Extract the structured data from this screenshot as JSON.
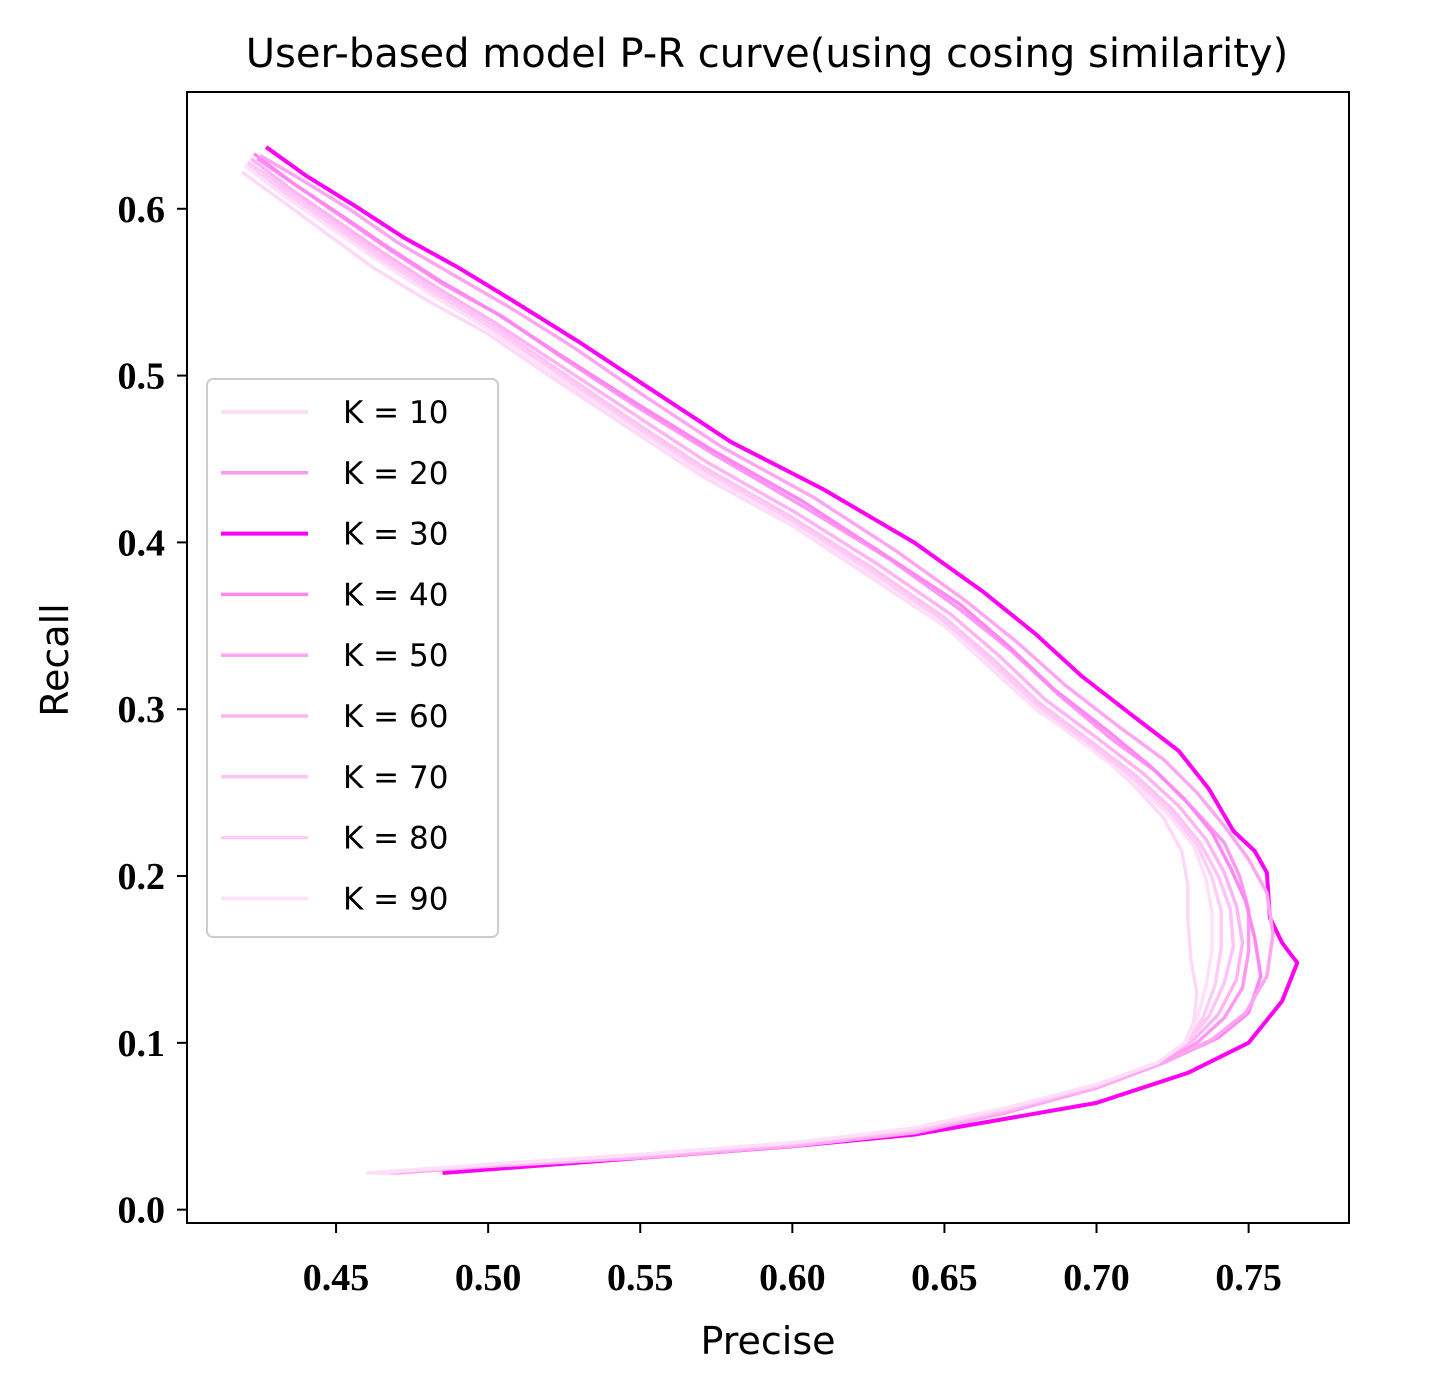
{
  "chart_data": {
    "type": "line",
    "title": "User-based model P-R curve(using cosing similarity)",
    "xlabel": "Precise",
    "ylabel": "Recall",
    "xlim": [
      0.401,
      0.783
    ],
    "ylim": [
      -0.008,
      0.67
    ],
    "xticks": [
      0.45,
      0.5,
      0.55,
      0.6,
      0.65,
      0.7,
      0.75
    ],
    "xtick_labels": [
      "0.45",
      "0.50",
      "0.55",
      "0.60",
      "0.65",
      "0.70",
      "0.75"
    ],
    "yticks": [
      0.0,
      0.1,
      0.2,
      0.3,
      0.4,
      0.5,
      0.6
    ],
    "ytick_labels": [
      "0.0",
      "0.1",
      "0.2",
      "0.3",
      "0.4",
      "0.5",
      "0.6"
    ],
    "legend_position": "center-left",
    "grid": false,
    "series": [
      {
        "name": "K = 10",
        "color": "#ffd9f7",
        "x": [
          0.419,
          0.432,
          0.447,
          0.462,
          0.48,
          0.5,
          0.52,
          0.545,
          0.57,
          0.6,
          0.625,
          0.65,
          0.665,
          0.68,
          0.7,
          0.712,
          0.722,
          0.728,
          0.73,
          0.73,
          0.731,
          0.733,
          0.732,
          0.729,
          0.72,
          0.7,
          0.67,
          0.64,
          0.6,
          0.55,
          0.5,
          0.46
        ],
        "y": [
          0.622,
          0.605,
          0.585,
          0.565,
          0.545,
          0.525,
          0.5,
          0.47,
          0.44,
          0.41,
          0.38,
          0.35,
          0.325,
          0.3,
          0.275,
          0.255,
          0.235,
          0.215,
          0.195,
          0.175,
          0.15,
          0.13,
          0.113,
          0.1,
          0.088,
          0.075,
          0.06,
          0.048,
          0.04,
          0.033,
          0.027,
          0.022
        ]
      },
      {
        "name": "K = 20",
        "color": "#ff99f2",
        "x": [
          0.424,
          0.437,
          0.452,
          0.468,
          0.485,
          0.505,
          0.525,
          0.55,
          0.575,
          0.605,
          0.632,
          0.655,
          0.672,
          0.688,
          0.705,
          0.72,
          0.732,
          0.742,
          0.747,
          0.75,
          0.75,
          0.748,
          0.742,
          0.733,
          0.72,
          0.7,
          0.67,
          0.64,
          0.6,
          0.55,
          0.5,
          0.47
        ],
        "y": [
          0.63,
          0.614,
          0.595,
          0.575,
          0.555,
          0.535,
          0.51,
          0.48,
          0.452,
          0.42,
          0.39,
          0.36,
          0.335,
          0.308,
          0.282,
          0.262,
          0.24,
          0.22,
          0.2,
          0.18,
          0.155,
          0.133,
          0.115,
          0.1,
          0.087,
          0.073,
          0.058,
          0.046,
          0.038,
          0.031,
          0.026,
          0.022
        ]
      },
      {
        "name": "K = 30",
        "color": "#ff00f5",
        "x": [
          0.427,
          0.44,
          0.456,
          0.472,
          0.49,
          0.508,
          0.53,
          0.555,
          0.58,
          0.61,
          0.64,
          0.663,
          0.68,
          0.695,
          0.712,
          0.727,
          0.737,
          0.745,
          0.752,
          0.756,
          0.757,
          0.761,
          0.766,
          0.761,
          0.75,
          0.73,
          0.7,
          0.675,
          0.64,
          0.6,
          0.55,
          0.485
        ],
        "y": [
          0.637,
          0.62,
          0.602,
          0.583,
          0.565,
          0.545,
          0.52,
          0.49,
          0.46,
          0.432,
          0.4,
          0.37,
          0.345,
          0.32,
          0.296,
          0.275,
          0.252,
          0.227,
          0.215,
          0.202,
          0.175,
          0.16,
          0.148,
          0.125,
          0.1,
          0.082,
          0.064,
          0.056,
          0.045,
          0.038,
          0.031,
          0.022
        ]
      },
      {
        "name": "K = 40",
        "color": "#ff88f2",
        "x": [
          0.423,
          0.436,
          0.451,
          0.467,
          0.484,
          0.503,
          0.524,
          0.549,
          0.574,
          0.603,
          0.63,
          0.655,
          0.671,
          0.686,
          0.703,
          0.717,
          0.729,
          0.738,
          0.744,
          0.749,
          0.752,
          0.754,
          0.75,
          0.74,
          0.722,
          0.7,
          0.67,
          0.64,
          0.6,
          0.55,
          0.5,
          0.468
        ],
        "y": [
          0.633,
          0.615,
          0.597,
          0.577,
          0.557,
          0.537,
          0.512,
          0.483,
          0.455,
          0.425,
          0.393,
          0.363,
          0.338,
          0.312,
          0.288,
          0.267,
          0.246,
          0.226,
          0.205,
          0.185,
          0.163,
          0.14,
          0.118,
          0.103,
          0.088,
          0.073,
          0.059,
          0.047,
          0.039,
          0.032,
          0.026,
          0.022
        ]
      },
      {
        "name": "K = 50",
        "color": "#ffa6f3",
        "x": [
          0.425,
          0.439,
          0.455,
          0.47,
          0.488,
          0.507,
          0.528,
          0.552,
          0.577,
          0.607,
          0.634,
          0.657,
          0.674,
          0.69,
          0.707,
          0.722,
          0.733,
          0.742,
          0.75,
          0.756,
          0.758,
          0.756,
          0.749,
          0.738,
          0.722,
          0.7,
          0.67,
          0.64,
          0.6,
          0.55,
          0.5,
          0.468
        ],
        "y": [
          0.632,
          0.617,
          0.599,
          0.58,
          0.561,
          0.541,
          0.517,
          0.487,
          0.457,
          0.427,
          0.395,
          0.365,
          0.34,
          0.314,
          0.29,
          0.27,
          0.25,
          0.23,
          0.21,
          0.19,
          0.165,
          0.14,
          0.118,
          0.102,
          0.088,
          0.073,
          0.058,
          0.046,
          0.038,
          0.031,
          0.026,
          0.022
        ]
      },
      {
        "name": "K = 60",
        "color": "#ffb5f4",
        "x": [
          0.422,
          0.435,
          0.45,
          0.466,
          0.483,
          0.502,
          0.522,
          0.547,
          0.572,
          0.601,
          0.628,
          0.652,
          0.668,
          0.683,
          0.7,
          0.715,
          0.727,
          0.736,
          0.742,
          0.746,
          0.748,
          0.746,
          0.74,
          0.732,
          0.72,
          0.7,
          0.67,
          0.64,
          0.6,
          0.55,
          0.5,
          0.465
        ],
        "y": [
          0.63,
          0.612,
          0.593,
          0.573,
          0.553,
          0.532,
          0.508,
          0.478,
          0.448,
          0.418,
          0.387,
          0.357,
          0.332,
          0.306,
          0.283,
          0.262,
          0.242,
          0.222,
          0.202,
          0.182,
          0.16,
          0.138,
          0.117,
          0.102,
          0.088,
          0.074,
          0.059,
          0.047,
          0.039,
          0.032,
          0.026,
          0.022
        ]
      },
      {
        "name": "K = 70",
        "color": "#ffc4f5",
        "x": [
          0.421,
          0.434,
          0.449,
          0.465,
          0.482,
          0.501,
          0.521,
          0.545,
          0.57,
          0.599,
          0.626,
          0.65,
          0.666,
          0.681,
          0.698,
          0.713,
          0.725,
          0.734,
          0.74,
          0.744,
          0.745,
          0.742,
          0.737,
          0.73,
          0.72,
          0.7,
          0.67,
          0.64,
          0.6,
          0.55,
          0.5,
          0.464
        ],
        "y": [
          0.628,
          0.611,
          0.592,
          0.572,
          0.552,
          0.531,
          0.506,
          0.476,
          0.446,
          0.416,
          0.385,
          0.355,
          0.33,
          0.304,
          0.281,
          0.26,
          0.24,
          0.22,
          0.2,
          0.18,
          0.158,
          0.136,
          0.116,
          0.101,
          0.088,
          0.074,
          0.06,
          0.048,
          0.04,
          0.033,
          0.027,
          0.022
        ]
      },
      {
        "name": "K = 80",
        "color": "#ffccf6",
        "x": [
          0.421,
          0.433,
          0.448,
          0.464,
          0.481,
          0.5,
          0.52,
          0.544,
          0.569,
          0.598,
          0.625,
          0.649,
          0.665,
          0.68,
          0.697,
          0.712,
          0.724,
          0.733,
          0.738,
          0.741,
          0.741,
          0.739,
          0.735,
          0.73,
          0.72,
          0.7,
          0.67,
          0.64,
          0.6,
          0.55,
          0.5,
          0.463
        ],
        "y": [
          0.627,
          0.61,
          0.591,
          0.571,
          0.551,
          0.53,
          0.505,
          0.475,
          0.445,
          0.415,
          0.384,
          0.354,
          0.329,
          0.303,
          0.28,
          0.259,
          0.239,
          0.219,
          0.199,
          0.179,
          0.157,
          0.135,
          0.115,
          0.101,
          0.088,
          0.075,
          0.06,
          0.048,
          0.04,
          0.033,
          0.027,
          0.022
        ]
      },
      {
        "name": "K = 90",
        "color": "#ffe0f8",
        "x": [
          0.42,
          0.432,
          0.447,
          0.463,
          0.48,
          0.499,
          0.519,
          0.543,
          0.568,
          0.597,
          0.624,
          0.648,
          0.664,
          0.679,
          0.696,
          0.711,
          0.723,
          0.732,
          0.736,
          0.738,
          0.738,
          0.736,
          0.733,
          0.729,
          0.72,
          0.7,
          0.67,
          0.64,
          0.6,
          0.55,
          0.5,
          0.462
        ],
        "y": [
          0.626,
          0.609,
          0.59,
          0.57,
          0.55,
          0.529,
          0.504,
          0.474,
          0.444,
          0.414,
          0.383,
          0.353,
          0.328,
          0.302,
          0.279,
          0.258,
          0.238,
          0.218,
          0.198,
          0.178,
          0.156,
          0.134,
          0.114,
          0.1,
          0.088,
          0.075,
          0.061,
          0.049,
          0.04,
          0.033,
          0.027,
          0.022
        ]
      }
    ]
  }
}
